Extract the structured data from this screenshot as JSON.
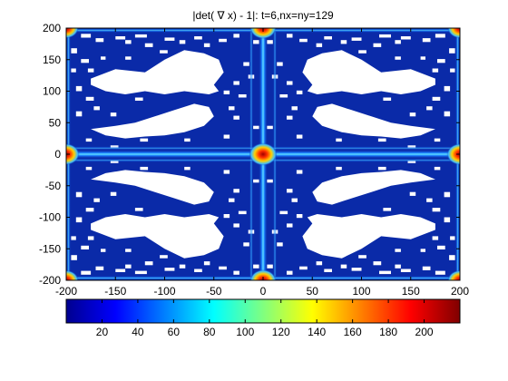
{
  "chart_data": {
    "type": "heatmap",
    "title": "|det( ∇ x) - 1|: t=6,nx=ny=129",
    "xlim": [
      -200,
      200
    ],
    "ylim": [
      -200,
      200
    ],
    "x_ticks": [
      -200,
      -150,
      -100,
      -50,
      0,
      50,
      100,
      150,
      200
    ],
    "y_ticks": [
      -200,
      -150,
      -100,
      -50,
      0,
      50,
      100,
      150,
      200
    ],
    "colorbar": {
      "colormap": "jet",
      "range": [
        0,
        220
      ],
      "ticks": [
        20,
        40,
        60,
        80,
        100,
        120,
        140,
        160,
        180,
        200
      ],
      "placement": "bottom"
    },
    "grid": false,
    "background_value_color": "#0a2aa8",
    "masked_region_color": "#ffffff",
    "peak_locations": [
      {
        "x": 0,
        "y": 0,
        "value": 220
      },
      {
        "x": -200,
        "y": 0,
        "value": 200
      },
      {
        "x": 200,
        "y": 0,
        "value": 200
      },
      {
        "x": 0,
        "y": 200,
        "value": 200
      },
      {
        "x": 0,
        "y": -200,
        "value": 200
      },
      {
        "x": -200,
        "y": 200,
        "value": 180
      },
      {
        "x": 200,
        "y": 200,
        "value": 180
      },
      {
        "x": -200,
        "y": -200,
        "value": 180
      },
      {
        "x": 200,
        "y": -200,
        "value": 180
      }
    ]
  }
}
